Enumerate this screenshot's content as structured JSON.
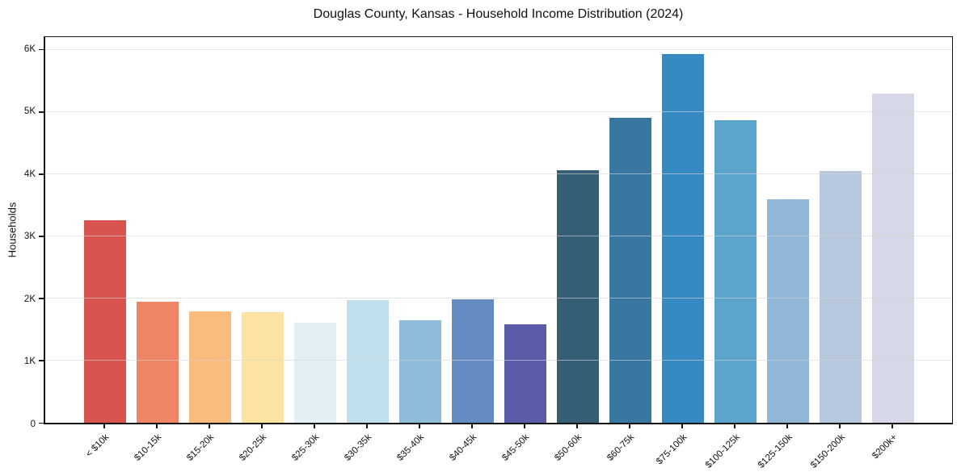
{
  "chart_data": {
    "type": "bar",
    "title": "Douglas County, Kansas - Household Income Distribution (2024)",
    "xlabel": "",
    "ylabel": "Households",
    "categories": [
      "< $10k",
      "$10-15k",
      "$15-20k",
      "$20-25k",
      "$25-30k",
      "$30-35k",
      "$35-40k",
      "$40-45k",
      "$45-50k",
      "$50-60k",
      "$60-75k",
      "$75-100k",
      "$100-125k",
      "$125-150k",
      "$150-200k",
      "$200k+"
    ],
    "values": [
      3250,
      1950,
      1790,
      1780,
      1610,
      1970,
      1650,
      1990,
      1580,
      4060,
      4900,
      5930,
      4870,
      3590,
      4050,
      5290
    ],
    "bar_colors": [
      "#d8544f",
      "#f08566",
      "#fabc7c",
      "#fde3a1",
      "#e2f0f5",
      "#bedfeb",
      "#8fbbdb",
      "#648bc2",
      "#5a5caa",
      "#355f74",
      "#3878a0",
      "#3689c1",
      "#5ba4cb",
      "#91b7d8",
      "#b7c8de",
      "#d7d8e7"
    ],
    "yticks": [
      {
        "value": 0,
        "label": "0"
      },
      {
        "value": 1000,
        "label": "1K"
      },
      {
        "value": 2000,
        "label": "2K"
      },
      {
        "value": 3000,
        "label": "3K"
      },
      {
        "value": 4000,
        "label": "4K"
      },
      {
        "value": 5000,
        "label": "5K"
      },
      {
        "value": 6000,
        "label": "6K"
      }
    ],
    "ylim": [
      0,
      6200
    ],
    "grid": "horizontal",
    "legend": "none",
    "background_color": "#ffffff",
    "spine_color": "#161616",
    "grid_color": "#d6d6da"
  }
}
